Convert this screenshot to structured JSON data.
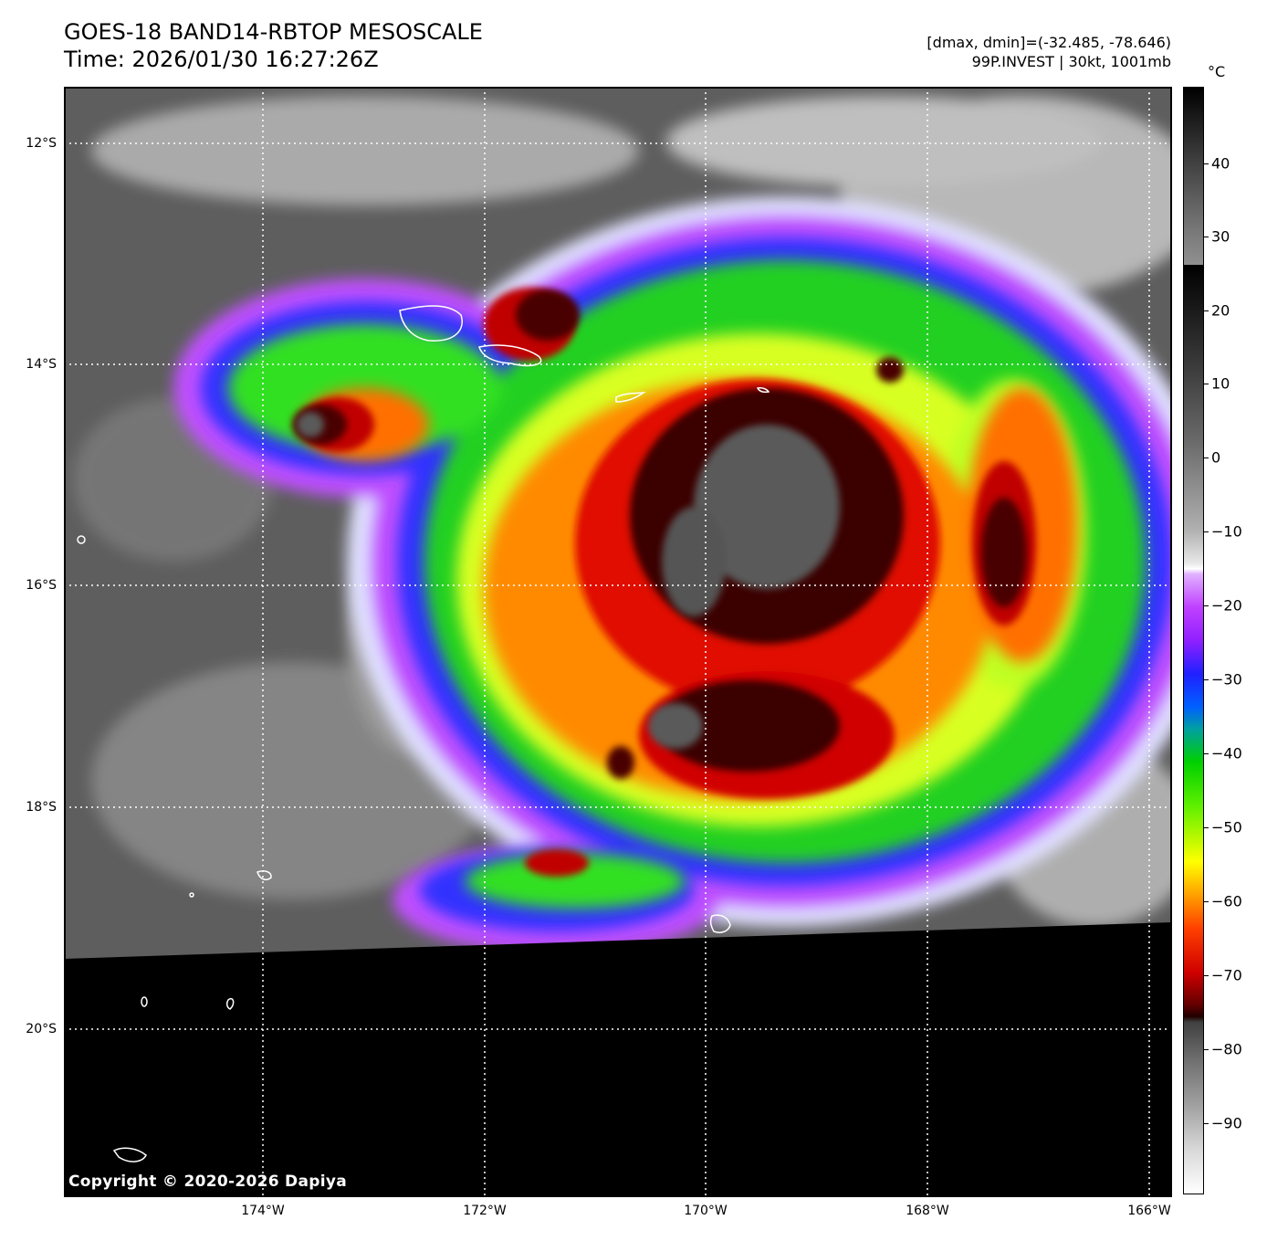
{
  "header": {
    "title_line1": "GOES-18 BAND14-RBTOP MESOSCALE",
    "title_line2": "Time: 2026/01/30 16:27:26Z",
    "range_text": "[dmax, dmin]=(-32.485, -78.646)",
    "storm_text": "99P.INVEST | 30kt, 1001mb"
  },
  "map": {
    "lat_labels": [
      "12°S",
      "14°S",
      "16°S",
      "18°S",
      "20°S"
    ],
    "lon_labels": [
      "174°W",
      "172°W",
      "170°W",
      "168°W",
      "166°W"
    ],
    "copyright": "Copyright © 2020-2026 Dapiya"
  },
  "colorbar": {
    "unit": "°C",
    "ticks": [
      "40",
      "30",
      "20",
      "10",
      "0",
      "−10",
      "−20",
      "−30",
      "−40",
      "−50",
      "−60",
      "−70",
      "−80",
      "−90"
    ],
    "colors": {
      "warm_gray": "#808080",
      "cold_white": "#ffffff",
      "violet": "#a020f0",
      "blue": "#0000ff",
      "green": "#00d000",
      "yellow": "#ffff00",
      "orange": "#ff8000",
      "red": "#e00000",
      "dark_red": "#300000"
    }
  }
}
